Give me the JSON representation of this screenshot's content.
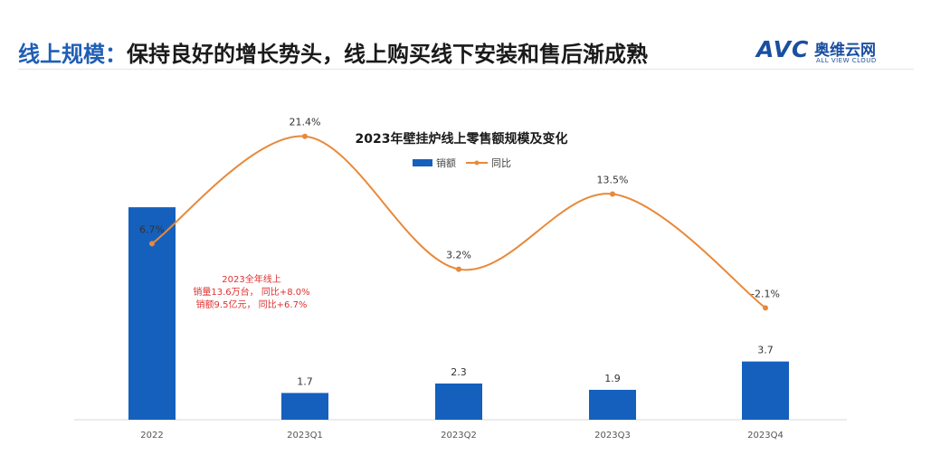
{
  "header": {
    "title_lead": "线上规模：",
    "title_rest": "保持良好的增长势头，线上购买线下安装和售后渐成熟"
  },
  "logo": {
    "mark": "AVC",
    "name": "奥维云网",
    "tagline": "ALL VIEW CLOUD"
  },
  "chart_data": {
    "type": "bar",
    "title": "2023年壁挂炉线上零售额规模及变化",
    "categories": [
      "2022",
      "2023Q1",
      "2023Q2",
      "2023Q3",
      "2023Q4"
    ],
    "series": [
      {
        "name": "销额",
        "type": "bar",
        "values": [
          13.5,
          1.7,
          2.3,
          1.9,
          3.7
        ],
        "labels": [
          "",
          "1.7",
          "2.3",
          "1.9",
          "3.7"
        ]
      },
      {
        "name": "同比",
        "type": "line",
        "values": [
          6.7,
          21.4,
          3.2,
          13.5,
          -2.1
        ],
        "labels": [
          "6.7%",
          "21.4%",
          "3.2%",
          "13.5%",
          "-2.1%"
        ]
      }
    ],
    "legend_position": "top",
    "grid": false,
    "annotation": [
      "2023全年线上",
      "销量13.6万台，  同比+8.0%",
      "销额9.5亿元，  同比+6.7%"
    ],
    "colors": {
      "bar": "#1560bd",
      "line": "#e8893a",
      "annotation": "#e03030",
      "axis": "#d9d9d9"
    }
  },
  "colors": {
    "accent": "#1f5fb5"
  }
}
